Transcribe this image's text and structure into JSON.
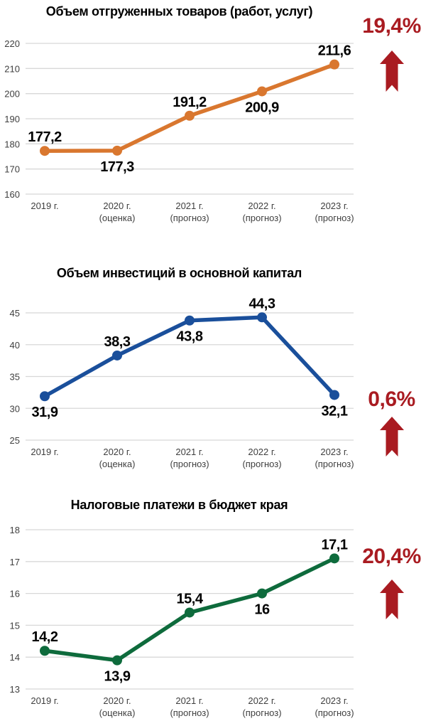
{
  "page": {
    "background": "#ffffff"
  },
  "chart_data": [
    {
      "type": "line",
      "title": "Объем отгруженных товаров (работ, услуг)",
      "categories": [
        "2019 г.",
        "2020 г.",
        "2021 г.",
        "2022 г.",
        "2023 г."
      ],
      "category_notes": [
        "",
        "(оценка)",
        "(прогноз)",
        "(прогноз)",
        "(прогноз)"
      ],
      "values": [
        177.2,
        177.3,
        191.2,
        200.9,
        211.6
      ],
      "value_labels": [
        "177,2",
        "177,3",
        "191,2",
        "200,9",
        "211,6"
      ],
      "label_positions": [
        "above",
        "below",
        "above",
        "below",
        "above"
      ],
      "ylim": [
        160,
        220
      ],
      "yticks": [
        160,
        170,
        180,
        190,
        200,
        210,
        220
      ],
      "grid": true,
      "legend_position": "none",
      "line_color": "#D9772F",
      "grid_color": "#D8D8D8",
      "growth_label": "19,4%",
      "growth_color": "#A91B21",
      "growth_arrow": "up"
    },
    {
      "type": "line",
      "title": "Объем инвестиций в основной капитал",
      "categories": [
        "2019 г.",
        "2020 г.",
        "2021 г.",
        "2022 г.",
        "2023 г."
      ],
      "category_notes": [
        "",
        "(оценка)",
        "(прогноз)",
        "(прогноз)",
        "(прогноз)"
      ],
      "values": [
        31.9,
        38.3,
        43.8,
        44.3,
        32.1
      ],
      "value_labels": [
        "31,9",
        "38,3",
        "43,8",
        "44,3",
        "32,1"
      ],
      "label_positions": [
        "below",
        "above",
        "below",
        "above",
        "below"
      ],
      "ylim": [
        25,
        45
      ],
      "yticks": [
        25,
        30,
        35,
        40,
        45
      ],
      "grid": true,
      "legend_position": "none",
      "line_color": "#1A4F9B",
      "grid_color": "#D8D8D8",
      "growth_label": "0,6%",
      "growth_color": "#A91B21",
      "growth_arrow": "up"
    },
    {
      "type": "line",
      "title": "Налоговые платежи в бюджет края",
      "categories": [
        "2019 г.",
        "2020 г.",
        "2021 г.",
        "2022 г.",
        "2023 г."
      ],
      "category_notes": [
        "",
        "(оценка)",
        "(прогноз)",
        "(прогноз)",
        "(прогноз)"
      ],
      "values": [
        14.2,
        13.9,
        15.4,
        16,
        17.1
      ],
      "value_labels": [
        "14,2",
        "13,9",
        "15,4",
        "16",
        "17,1"
      ],
      "label_positions": [
        "above",
        "below",
        "above",
        "below",
        "above"
      ],
      "ylim": [
        13,
        18
      ],
      "yticks": [
        13,
        14,
        15,
        16,
        17,
        18
      ],
      "grid": true,
      "legend_position": "none",
      "line_color": "#0E6B3C",
      "grid_color": "#D8D8D8",
      "growth_label": "20,4%",
      "growth_color": "#A91B21",
      "growth_arrow": "up"
    }
  ]
}
